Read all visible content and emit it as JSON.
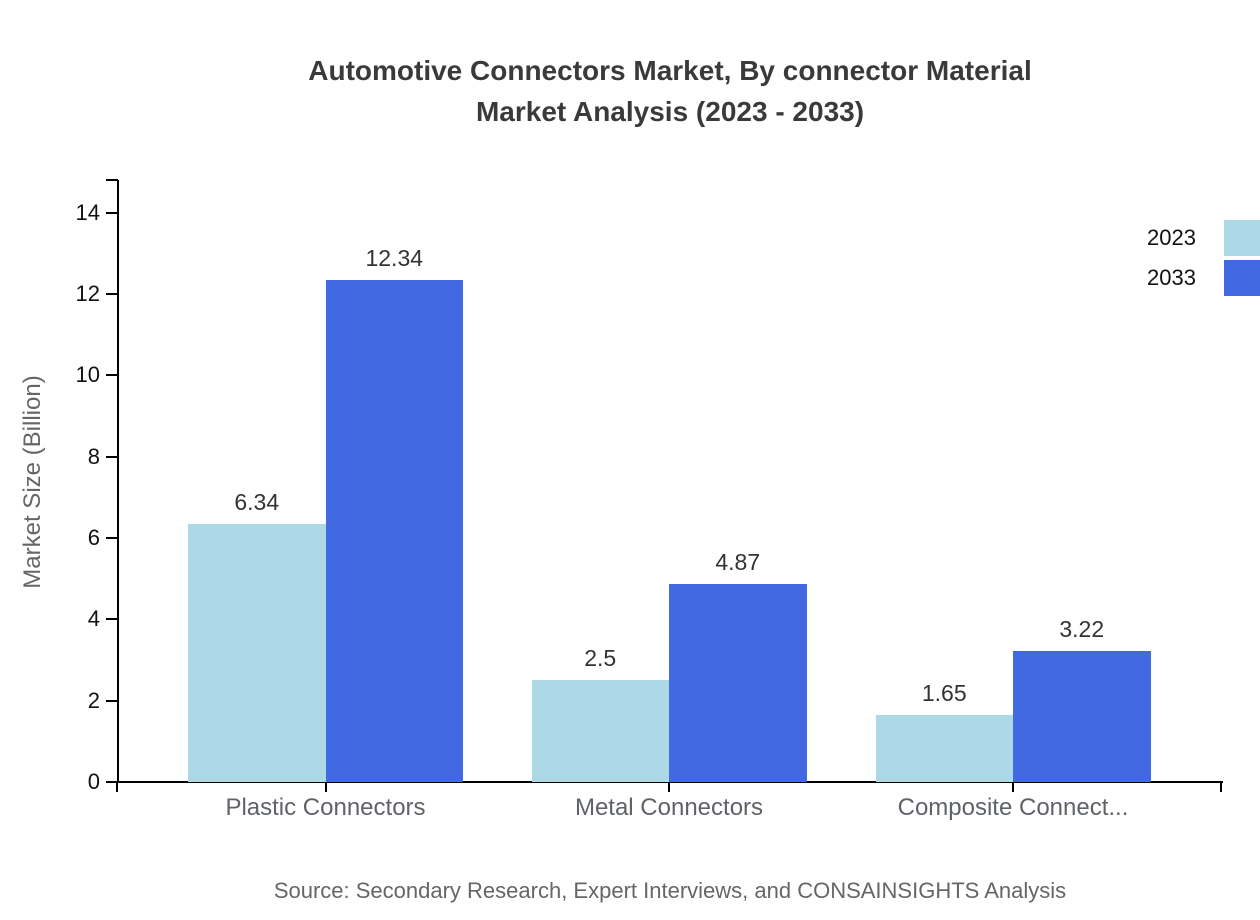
{
  "title": {
    "line1": "Automotive Connectors Market, By connector Material",
    "line2": "Market Analysis (2023 - 2033)"
  },
  "y_axis": {
    "label": "Market Size (Billion)"
  },
  "legend": [
    {
      "label": "2023",
      "color": "#ADD8E6"
    },
    {
      "label": "2033",
      "color": "#4169E1"
    }
  ],
  "source": "Source: Secondary Research, Expert Interviews, and CONSAINSIGHTS Analysis",
  "chart_data": {
    "type": "bar",
    "title": "Automotive Connectors Market, By connector Material Market Analysis (2023 - 2033)",
    "categories": [
      "Plastic Connectors",
      "Metal Connectors",
      "Composite Connect..."
    ],
    "series": [
      {
        "name": "2023",
        "color": "#ADD8E6",
        "values": [
          6.34,
          2.5,
          1.65
        ]
      },
      {
        "name": "2033",
        "color": "#4169E1",
        "values": [
          12.34,
          4.87,
          3.22
        ]
      }
    ],
    "xlabel": "",
    "ylabel": "Market Size (Billion)",
    "ylim": [
      0,
      14.8
    ],
    "yticks": [
      0,
      2,
      4,
      6,
      8,
      10,
      12,
      14
    ],
    "grid": false,
    "legend_position": "top-right",
    "value_labels_shown": true
  }
}
